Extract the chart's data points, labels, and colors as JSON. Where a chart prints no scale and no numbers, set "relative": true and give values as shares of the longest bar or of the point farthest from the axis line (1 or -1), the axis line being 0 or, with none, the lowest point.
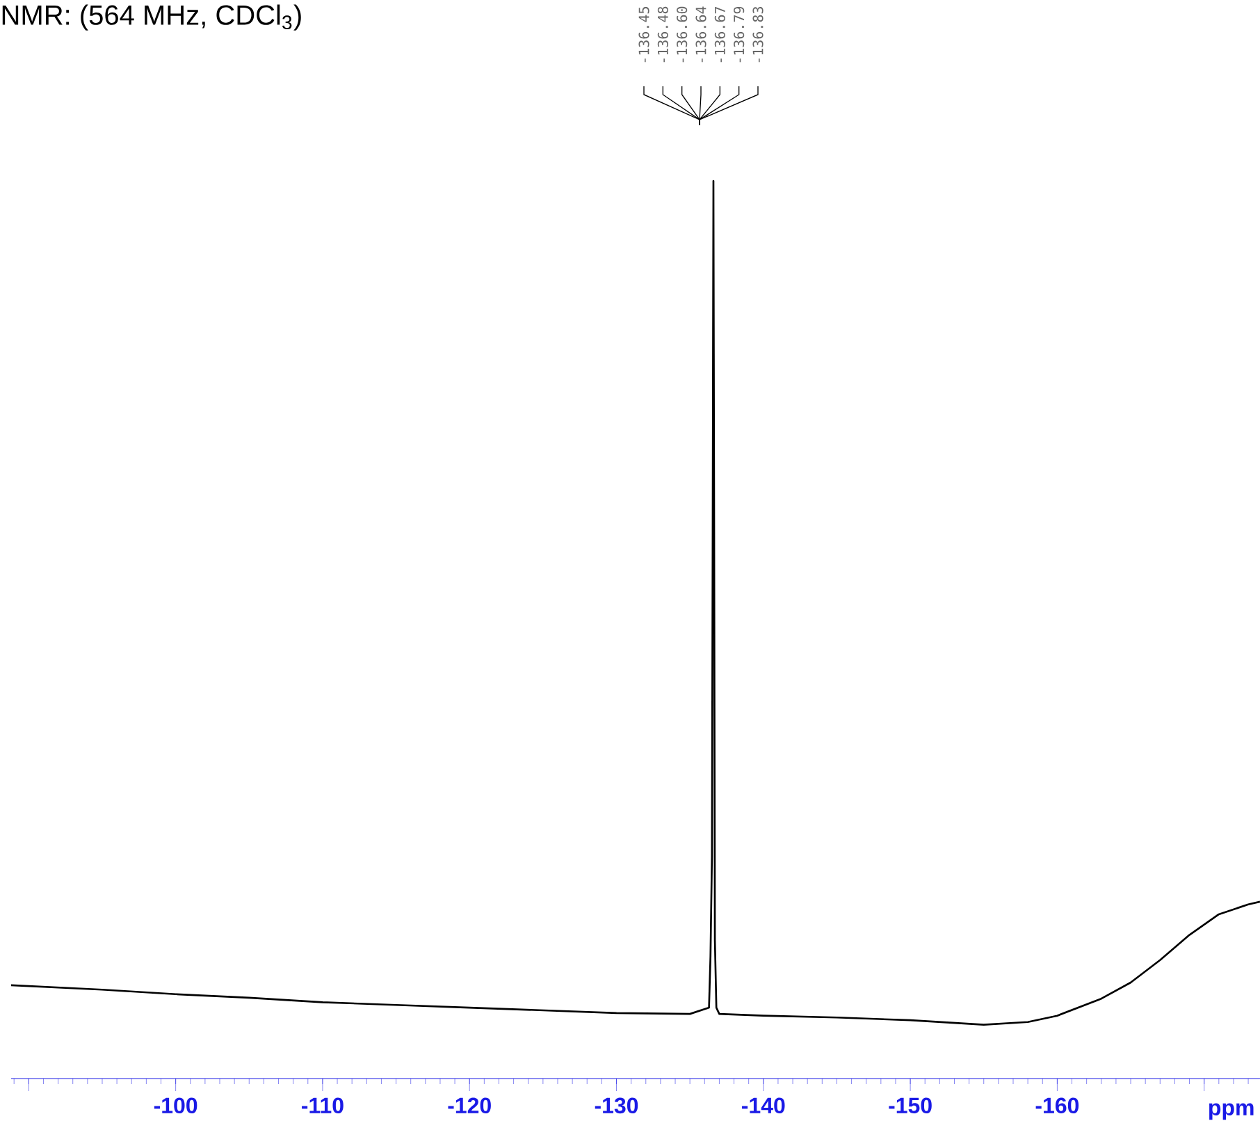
{
  "chart_data": {
    "type": "line",
    "title": "NMR: (564 MHz, CDCl$_{3}$)",
    "xlabel": "ppm",
    "relative": true,
    "xlim": [
      -88.8,
      -173.8
    ],
    "xticks": [
      {
        "value": -90,
        "label": null
      },
      -100,
      -110,
      -120,
      -130,
      -140,
      -150,
      -160,
      {
        "value": -170,
        "label": null
      }
    ],
    "annotations": [
      "-136.45",
      "-136.48",
      "-136.60",
      "-136.64",
      "-136.67",
      "-136.79",
      "-136.83"
    ],
    "series": [
      {
        "color": "#000000",
        "x": [
          -88.8,
          -95,
          -100,
          -105,
          -110,
          -115,
          -120,
          -125,
          -130,
          -135,
          -136.3,
          -136.4,
          -136.5,
          -136.55,
          -136.6,
          -136.65,
          -136.7,
          -136.8,
          -137,
          -140,
          -145,
          -150,
          -155,
          -158,
          -160,
          -163,
          -165,
          -167,
          -169,
          -171,
          -173,
          -173.8
        ],
        "values": [
          0.104,
          0.099,
          0.094,
          0.09,
          0.085,
          0.082,
          0.079,
          0.076,
          0.073,
          0.072,
          0.079,
          0.136,
          0.248,
          0.605,
          1,
          0.605,
          0.154,
          0.079,
          0.072,
          0.07,
          0.068,
          0.065,
          0.06,
          0.063,
          0.07,
          0.089,
          0.107,
          0.132,
          0.16,
          0.183,
          0.194,
          0.197
        ]
      }
    ]
  }
}
